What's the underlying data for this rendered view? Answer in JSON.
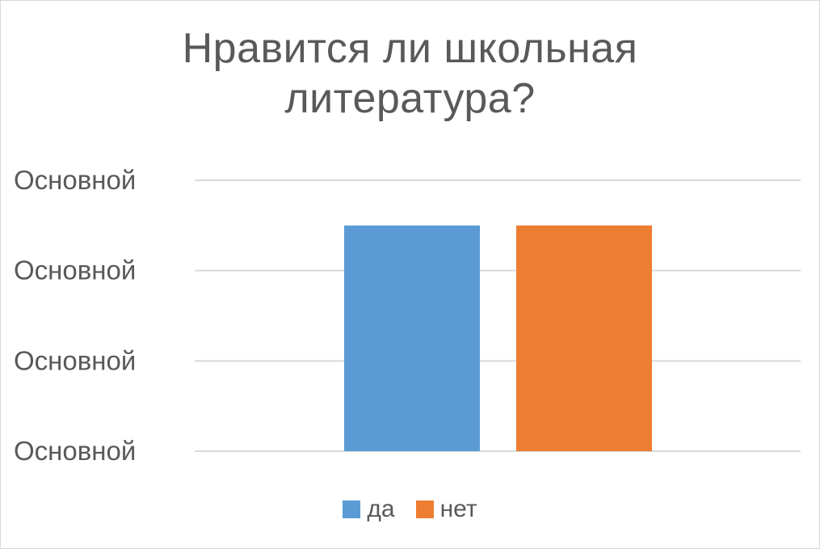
{
  "chart_data": {
    "type": "bar",
    "title": "Нравится ли школьная литература?",
    "title_lines": [
      "Нравится ли школьная",
      "литература?"
    ],
    "categories": [
      ""
    ],
    "series": [
      {
        "name": "да",
        "color": "#5b9bd5",
        "values": [
          2.5
        ]
      },
      {
        "name": "нет",
        "color": "#ed7d31",
        "values": [
          2.5
        ]
      }
    ],
    "y_tick_labels": [
      "Основной",
      "Основной",
      "Основной",
      "Основной"
    ],
    "ylim": [
      0,
      3
    ],
    "grid": true,
    "legend_position": "bottom",
    "xlabel": "",
    "ylabel": ""
  }
}
